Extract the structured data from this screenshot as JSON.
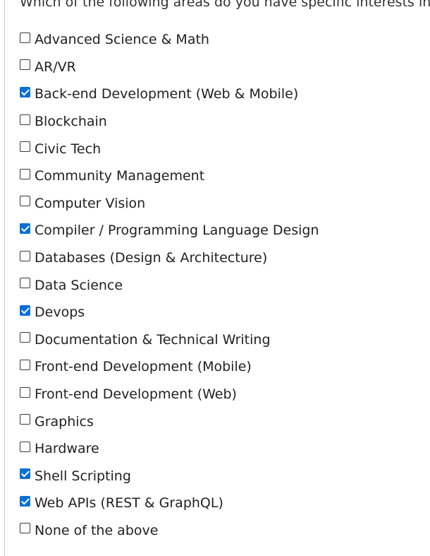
{
  "question": {
    "text": "Which of the following areas do you have specific interests in?",
    "required_marker": "*"
  },
  "colors": {
    "checkbox_checked": "#0a6fd6",
    "required_marker": "#d0342c"
  },
  "options": [
    {
      "label": "Advanced Science & Math",
      "checked": false
    },
    {
      "label": "AR/VR",
      "checked": false
    },
    {
      "label": "Back-end Development (Web & Mobile)",
      "checked": true
    },
    {
      "label": "Blockchain",
      "checked": false
    },
    {
      "label": "Civic Tech",
      "checked": false
    },
    {
      "label": "Community Management",
      "checked": false
    },
    {
      "label": "Computer Vision",
      "checked": false
    },
    {
      "label": "Compiler / Programming Language Design",
      "checked": true
    },
    {
      "label": "Databases (Design & Architecture)",
      "checked": false
    },
    {
      "label": "Data Science",
      "checked": false
    },
    {
      "label": "Devops",
      "checked": true
    },
    {
      "label": "Documentation & Technical Writing",
      "checked": false
    },
    {
      "label": "Front-end Development (Mobile)",
      "checked": false
    },
    {
      "label": "Front-end Development (Web)",
      "checked": false
    },
    {
      "label": "Graphics",
      "checked": false
    },
    {
      "label": "Hardware",
      "checked": false
    },
    {
      "label": "Shell Scripting",
      "checked": true
    },
    {
      "label": "Web APIs (REST & GraphQL)",
      "checked": true
    },
    {
      "label": "None of the above",
      "checked": false
    }
  ]
}
